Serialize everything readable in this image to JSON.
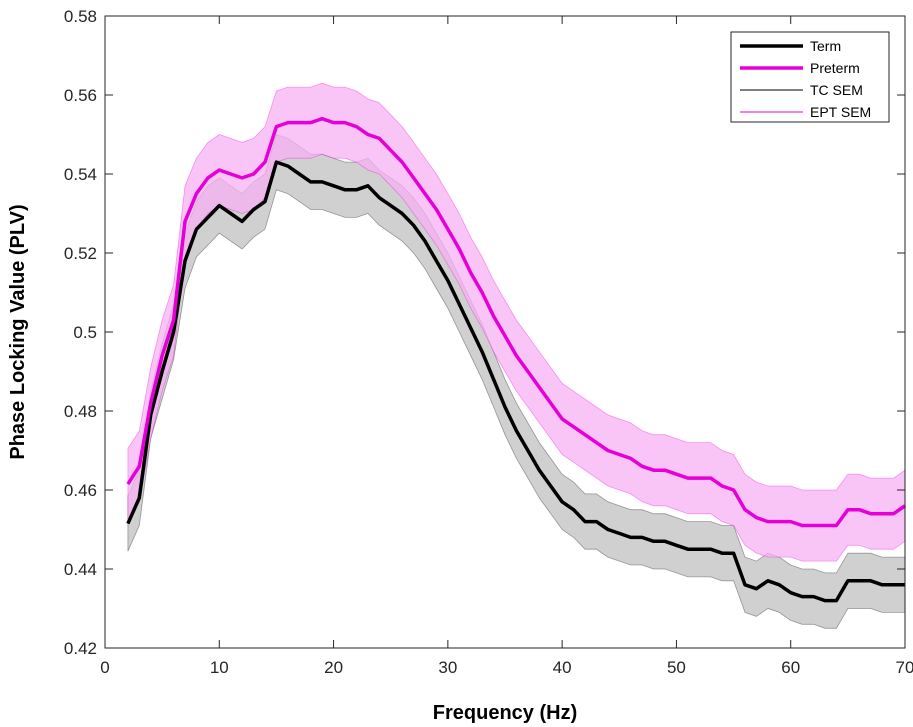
{
  "chart_data": {
    "type": "line",
    "title": "",
    "xlabel": "Frequency (Hz)",
    "ylabel": "Phase Locking Value (PLV)",
    "xlim": [
      0,
      70
    ],
    "ylim": [
      0.42,
      0.58
    ],
    "xticks": [
      0,
      10,
      20,
      30,
      40,
      50,
      60,
      70
    ],
    "yticks": [
      0.42,
      0.44,
      0.46,
      0.48,
      0.5,
      0.52,
      0.54,
      0.56,
      0.58
    ],
    "grid": false,
    "legend_position": "top-right",
    "legend": [
      "Term",
      "Preterm",
      "TC SEM",
      "EPT SEM"
    ],
    "x": [
      2,
      3,
      4,
      5,
      6,
      7,
      8,
      9,
      10,
      11,
      12,
      13,
      14,
      15,
      16,
      17,
      18,
      19,
      20,
      21,
      22,
      23,
      24,
      25,
      26,
      27,
      28,
      29,
      30,
      31,
      32,
      33,
      34,
      35,
      36,
      37,
      38,
      39,
      40,
      41,
      42,
      43,
      44,
      45,
      46,
      47,
      48,
      49,
      50,
      51,
      52,
      53,
      54,
      55,
      56,
      57,
      58,
      59,
      60,
      61,
      62,
      63,
      64,
      65,
      66,
      67,
      68,
      69,
      70
    ],
    "series": [
      {
        "name": "Term",
        "color": "#000000",
        "values": [
          0.4515,
          0.458,
          0.479,
          0.49,
          0.5,
          0.518,
          0.526,
          0.529,
          0.532,
          0.53,
          0.528,
          0.531,
          0.533,
          0.543,
          0.542,
          0.54,
          0.538,
          0.538,
          0.537,
          0.536,
          0.536,
          0.537,
          0.534,
          0.532,
          0.53,
          0.527,
          0.523,
          0.518,
          0.513,
          0.507,
          0.501,
          0.495,
          0.488,
          0.481,
          0.475,
          0.47,
          0.465,
          0.461,
          0.457,
          0.455,
          0.452,
          0.452,
          0.45,
          0.449,
          0.448,
          0.448,
          0.447,
          0.447,
          0.446,
          0.445,
          0.445,
          0.445,
          0.444,
          0.444,
          0.436,
          0.435,
          0.437,
          0.436,
          0.434,
          0.433,
          0.433,
          0.432,
          0.432,
          0.437,
          0.437,
          0.437,
          0.436,
          0.436,
          0.436
        ]
      },
      {
        "name": "Preterm",
        "color": "#e500d8",
        "values": [
          0.4615,
          0.466,
          0.482,
          0.494,
          0.503,
          0.528,
          0.535,
          0.539,
          0.541,
          0.54,
          0.539,
          0.54,
          0.543,
          0.552,
          0.553,
          0.553,
          0.553,
          0.554,
          0.553,
          0.553,
          0.552,
          0.55,
          0.549,
          0.546,
          0.543,
          0.539,
          0.535,
          0.531,
          0.526,
          0.521,
          0.515,
          0.51,
          0.504,
          0.499,
          0.494,
          0.49,
          0.486,
          0.482,
          0.478,
          0.476,
          0.474,
          0.472,
          0.47,
          0.469,
          0.468,
          0.466,
          0.465,
          0.465,
          0.464,
          0.463,
          0.463,
          0.463,
          0.461,
          0.46,
          0.455,
          0.453,
          0.452,
          0.452,
          0.452,
          0.451,
          0.451,
          0.451,
          0.451,
          0.455,
          0.455,
          0.454,
          0.454,
          0.454,
          0.456
        ]
      },
      {
        "name": "TC SEM",
        "color": "#000000",
        "fill": "#c0c0c0",
        "upper": [
          0.4585,
          0.465,
          0.485,
          0.497,
          0.507,
          0.525,
          0.533,
          0.537,
          0.539,
          0.537,
          0.535,
          0.538,
          0.54,
          0.55,
          0.549,
          0.547,
          0.545,
          0.545,
          0.544,
          0.543,
          0.543,
          0.544,
          0.541,
          0.539,
          0.537,
          0.534,
          0.53,
          0.525,
          0.52,
          0.514,
          0.508,
          0.502,
          0.495,
          0.488,
          0.482,
          0.477,
          0.472,
          0.468,
          0.464,
          0.462,
          0.459,
          0.459,
          0.457,
          0.456,
          0.455,
          0.455,
          0.454,
          0.454,
          0.453,
          0.452,
          0.452,
          0.452,
          0.451,
          0.451,
          0.443,
          0.442,
          0.444,
          0.443,
          0.441,
          0.44,
          0.44,
          0.439,
          0.439,
          0.444,
          0.444,
          0.444,
          0.443,
          0.443,
          0.443
        ],
        "lower": [
          0.4445,
          0.451,
          0.473,
          0.483,
          0.493,
          0.511,
          0.519,
          0.522,
          0.525,
          0.523,
          0.521,
          0.524,
          0.526,
          0.536,
          0.535,
          0.533,
          0.531,
          0.531,
          0.53,
          0.529,
          0.529,
          0.53,
          0.527,
          0.525,
          0.523,
          0.52,
          0.516,
          0.511,
          0.506,
          0.5,
          0.494,
          0.488,
          0.481,
          0.474,
          0.468,
          0.463,
          0.458,
          0.454,
          0.45,
          0.448,
          0.445,
          0.445,
          0.443,
          0.442,
          0.441,
          0.441,
          0.44,
          0.44,
          0.439,
          0.438,
          0.438,
          0.438,
          0.437,
          0.437,
          0.429,
          0.428,
          0.43,
          0.429,
          0.427,
          0.426,
          0.426,
          0.425,
          0.425,
          0.43,
          0.43,
          0.43,
          0.429,
          0.429,
          0.429
        ]
      },
      {
        "name": "EPT SEM",
        "color": "#e500d8",
        "fill": "#f7b0f3",
        "upper": [
          0.4705,
          0.475,
          0.491,
          0.503,
          0.512,
          0.537,
          0.544,
          0.548,
          0.55,
          0.549,
          0.548,
          0.549,
          0.552,
          0.561,
          0.562,
          0.562,
          0.562,
          0.563,
          0.562,
          0.562,
          0.561,
          0.559,
          0.558,
          0.555,
          0.552,
          0.548,
          0.544,
          0.54,
          0.535,
          0.53,
          0.524,
          0.519,
          0.513,
          0.508,
          0.503,
          0.499,
          0.495,
          0.491,
          0.487,
          0.485,
          0.483,
          0.481,
          0.479,
          0.478,
          0.477,
          0.475,
          0.474,
          0.474,
          0.473,
          0.472,
          0.472,
          0.472,
          0.47,
          0.469,
          0.464,
          0.462,
          0.461,
          0.461,
          0.461,
          0.46,
          0.46,
          0.46,
          0.46,
          0.464,
          0.464,
          0.463,
          0.463,
          0.463,
          0.465
        ],
        "lower": [
          0.4525,
          0.457,
          0.473,
          0.485,
          0.494,
          0.519,
          0.526,
          0.53,
          0.532,
          0.531,
          0.53,
          0.531,
          0.534,
          0.543,
          0.544,
          0.544,
          0.544,
          0.545,
          0.544,
          0.544,
          0.543,
          0.541,
          0.54,
          0.537,
          0.534,
          0.53,
          0.526,
          0.522,
          0.517,
          0.512,
          0.506,
          0.501,
          0.495,
          0.49,
          0.485,
          0.481,
          0.477,
          0.473,
          0.469,
          0.467,
          0.465,
          0.463,
          0.461,
          0.46,
          0.459,
          0.457,
          0.456,
          0.456,
          0.455,
          0.454,
          0.454,
          0.454,
          0.452,
          0.451,
          0.446,
          0.444,
          0.443,
          0.443,
          0.443,
          0.442,
          0.442,
          0.442,
          0.442,
          0.446,
          0.446,
          0.445,
          0.445,
          0.445,
          0.447
        ]
      }
    ]
  }
}
